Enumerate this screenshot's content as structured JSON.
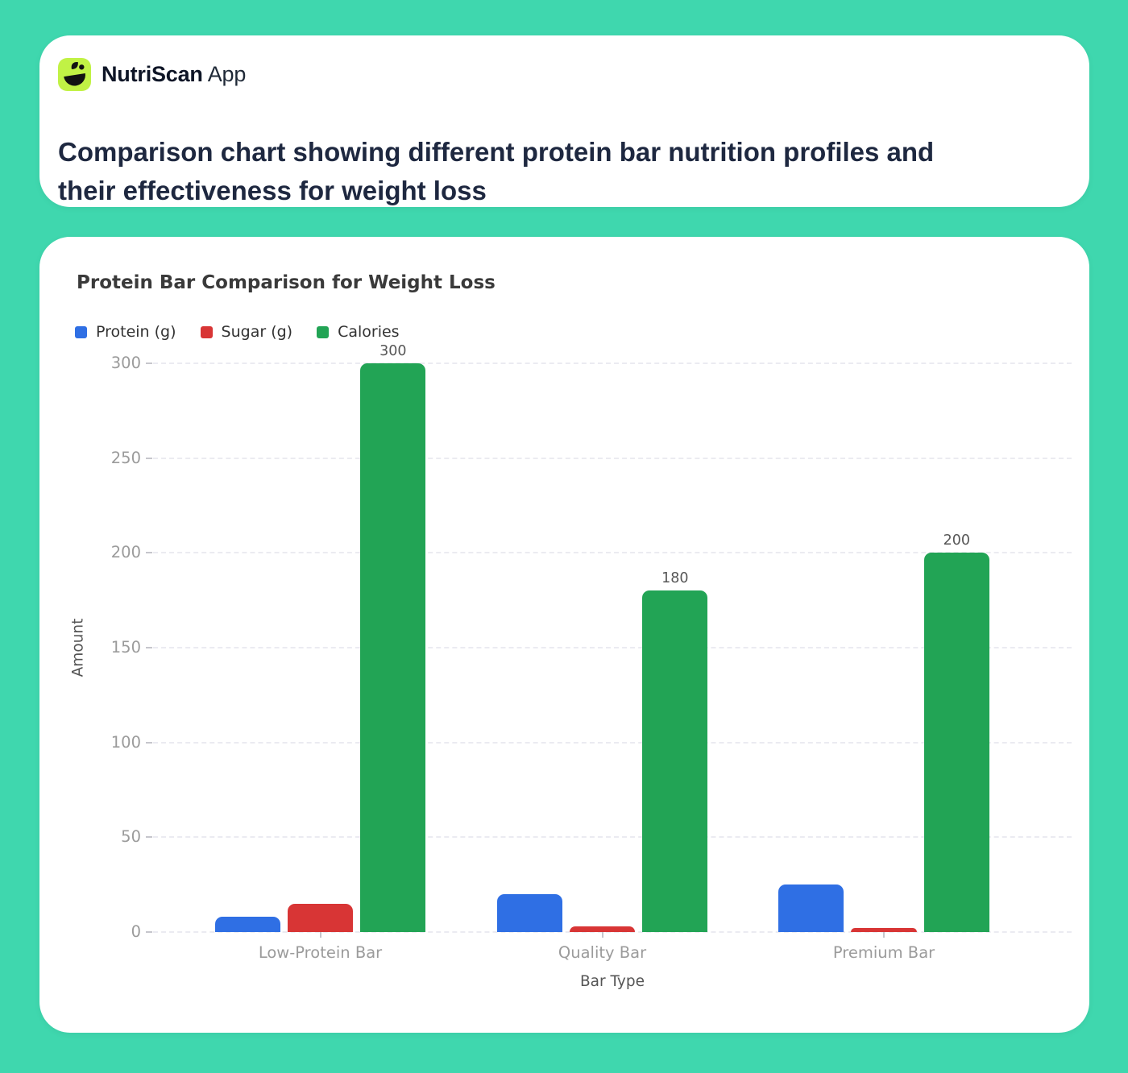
{
  "app_header": {
    "logo": {
      "icon": "nutriscan-logo-icon",
      "bg_color": "#c1f245"
    },
    "brand_name": "NutriScan",
    "brand_suffix": "App",
    "description": "Comparison chart showing different protein bar nutrition profiles and their effectiveness for weight loss"
  },
  "chart_data": {
    "type": "bar",
    "title": "Protein Bar Comparison for Weight Loss",
    "categories": [
      "Low-Protein Bar",
      "Quality Bar",
      "Premium Bar"
    ],
    "series": [
      {
        "name": "Protein (g)",
        "color": "#2f6fe4",
        "values": [
          8,
          20,
          25
        ],
        "show_value_labels": false
      },
      {
        "name": "Sugar (g)",
        "color": "#d83535",
        "values": [
          15,
          3,
          2
        ],
        "show_value_labels": false
      },
      {
        "name": "Calories",
        "color": "#22a455",
        "values": [
          300,
          180,
          200
        ],
        "show_value_labels": true
      }
    ],
    "xlabel": "Bar Type",
    "ylabel": "Amount",
    "ylim": [
      0,
      300
    ],
    "yticks": [
      0,
      50,
      100,
      150,
      200,
      250,
      300
    ],
    "grid": "horizontal-dashed",
    "legend_position": "top-left"
  },
  "colors": {
    "background": "#3fd7ae",
    "card": "#ffffff",
    "header_text": "#1e2840",
    "chart_title": "#3a3a3a",
    "tick_label": "#9b9b9b",
    "axis_label": "#555555",
    "value_label": "#565656"
  }
}
